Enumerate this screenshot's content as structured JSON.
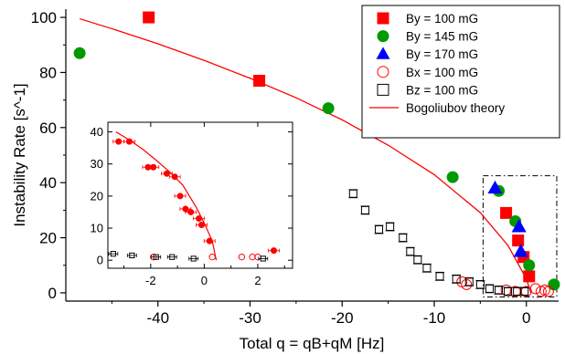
{
  "chart_data": [
    {
      "type": "scatter",
      "xlabel": "Total q = qB+qM [Hz]",
      "ylabel": "Instability Rate [s^-1]",
      "xlim": [
        -50,
        3.5
      ],
      "ylim": [
        -3,
        103
      ],
      "x_ticks": [
        "-40",
        "-30",
        "-20",
        "-10",
        "0"
      ],
      "y_ticks": [
        "0",
        "20",
        "40",
        "60",
        "80",
        "100"
      ],
      "legend_position": "top-right",
      "highlight_box": {
        "x": [
          -4.7,
          3.3
        ],
        "y": [
          -1.5,
          42.5
        ],
        "style": "dash-dot"
      },
      "series": [
        {
          "name": "By = 100 mG",
          "marker": "filled-square",
          "color": "#ff0000",
          "x": [
            -41,
            -29,
            -2.2,
            -0.9,
            -0.3,
            0.3
          ],
          "y": [
            100,
            77,
            29,
            19,
            13,
            6
          ]
        },
        {
          "name": "By = 145 mG",
          "marker": "filled-circle",
          "color": "#009900",
          "x": [
            -48.5,
            -21.5,
            -8,
            -3,
            -1.2,
            0.3,
            3
          ],
          "y": [
            87,
            67,
            42,
            37,
            26,
            10,
            3
          ]
        },
        {
          "name": "By  = 170 mG",
          "marker": "filled-triangle",
          "color": "#0000ff",
          "x": [
            -3.4,
            -0.8,
            -0.6
          ],
          "y": [
            38,
            24,
            15
          ]
        },
        {
          "name": "Bx  = 100 mG",
          "marker": "open-circle",
          "color": "#ff0000",
          "x": [
            -7,
            -6.5,
            -2.2,
            -1.2,
            0,
            1,
            1.6,
            2,
            2.4
          ],
          "y": [
            4,
            3,
            1,
            0.5,
            0.5,
            1.5,
            0.5,
            1,
            0.5
          ]
        },
        {
          "name": "Bz = 100 mG",
          "marker": "open-square",
          "color": "#000000",
          "x": [
            -18.8,
            -17.5,
            -16,
            -14.8,
            -13.4,
            -12.6,
            -11.8,
            -10.8,
            -9.4,
            -7.6,
            -6.2,
            -5,
            -4,
            -3,
            -2,
            -1,
            -0.2
          ],
          "y": [
            36,
            30,
            23,
            24,
            20,
            15,
            12,
            9,
            6,
            5,
            4,
            3,
            1.5,
            1,
            0.5,
            0.5,
            0.5
          ]
        },
        {
          "name": "Bogoliubov theory",
          "marker": "line",
          "color": "#ff0000",
          "x": [
            -48.5,
            -45,
            -40,
            -35,
            -30,
            -25,
            -20,
            -15,
            -10,
            -5,
            -2,
            0,
            0.5
          ],
          "y": [
            99.5,
            95.9,
            90.4,
            84.4,
            77.9,
            70.8,
            62.8,
            53.6,
            42.9,
            29.1,
            17.2,
            5.1,
            0
          ]
        }
      ]
    },
    {
      "type": "scatter",
      "position": "inset",
      "xlim": [
        -3.6,
        3.3
      ],
      "ylim": [
        -2.5,
        43
      ],
      "x_ticks": [
        "-2",
        "0",
        "2"
      ],
      "y_ticks": [
        "0",
        "10",
        "20",
        "30",
        "40"
      ],
      "series": [
        {
          "marker": "filled-circle",
          "color": "#ff0000",
          "errorbars": "x",
          "x": [
            -3.2,
            -2.8,
            -2.1,
            -1.9,
            -1.4,
            -1.1,
            -0.9,
            -0.7,
            -0.5,
            -0.2,
            -0.1,
            0.2,
            2.6
          ],
          "y": [
            37,
            37,
            29,
            29,
            27,
            26,
            20,
            16,
            15,
            13,
            11,
            6,
            3
          ]
        },
        {
          "marker": "open-circle",
          "color": "#ff0000",
          "x": [
            -1.9,
            0.3,
            1.4,
            1.8,
            2.0
          ],
          "y": [
            1,
            1,
            1,
            1,
            1
          ]
        },
        {
          "marker": "open-square",
          "color": "#000000",
          "errorbars": "x",
          "x": [
            -3.4,
            -2.7,
            -1.8,
            -1.2,
            -0.4,
            2.2
          ],
          "y": [
            2,
            1.5,
            1,
            1,
            0.5,
            0.5
          ]
        },
        {
          "marker": "line",
          "color": "#ff0000",
          "x": [
            -3.3,
            -2.8,
            -2.3,
            -1.8,
            -1.3,
            -0.8,
            -0.3,
            0,
            0.3,
            0.45
          ],
          "y": [
            40,
            37.5,
            34.6,
            31.2,
            27.6,
            23.4,
            16.5,
            11.6,
            6,
            0
          ]
        }
      ]
    }
  ]
}
